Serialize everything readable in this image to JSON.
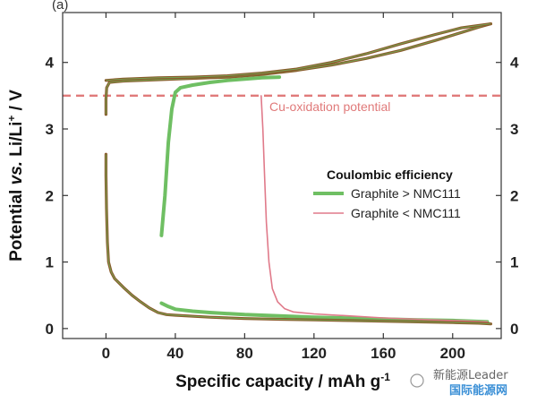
{
  "chart_data": {
    "type": "line",
    "panel_label": "(a)",
    "xlabel": "Specific capacity / mAh g",
    "xlabel_sup": "-1",
    "ylabel_parts": {
      "pre": "Potential ",
      "vs": "vs.",
      "mid": " Li/Li",
      "sup": "+",
      "post": " / V"
    },
    "xlim": [
      -25,
      228
    ],
    "ylim": [
      -0.15,
      4.75
    ],
    "x_ticks": [
      0,
      40,
      80,
      120,
      160,
      200
    ],
    "y_ticks": [
      0,
      1,
      2,
      3,
      4
    ],
    "grid": false,
    "mirror_right_axis": true,
    "legend_title": "Coulombic efficiency",
    "legend_position": "center-right",
    "reference_line": {
      "y": 3.5,
      "label": "Cu-oxidation potential",
      "color": "#e07a7a"
    },
    "series": [
      {
        "name": "Graphite > NMC111",
        "color": "#6fbf63",
        "width": 4,
        "segments": [
          [
            [
              32,
              1.4
            ],
            [
              34,
              2.0
            ],
            [
              36,
              2.8
            ],
            [
              38,
              3.3
            ],
            [
              40,
              3.55
            ],
            [
              43,
              3.62
            ],
            [
              50,
              3.66
            ],
            [
              60,
              3.7
            ],
            [
              70,
              3.73
            ],
            [
              80,
              3.75
            ],
            [
              90,
              3.77
            ],
            [
              100,
              3.78
            ]
          ],
          [
            [
              32,
              0.38
            ],
            [
              36,
              0.33
            ],
            [
              40,
              0.29
            ],
            [
              50,
              0.26
            ],
            [
              60,
              0.24
            ],
            [
              80,
              0.21
            ],
            [
              100,
              0.19
            ],
            [
              120,
              0.17
            ],
            [
              150,
              0.15
            ],
            [
              180,
              0.13
            ],
            [
              200,
              0.12
            ],
            [
              220,
              0.1
            ]
          ]
        ]
      },
      {
        "name": "Graphite < NMC111",
        "color": "#e07a8a",
        "width": 1.6,
        "segments": [
          [
            [
              89.5,
              3.5
            ],
            [
              90.5,
              3.0
            ],
            [
              91.5,
              2.3
            ],
            [
              92.5,
              1.6
            ],
            [
              94,
              1.0
            ],
            [
              96,
              0.6
            ],
            [
              99,
              0.4
            ],
            [
              103,
              0.3
            ],
            [
              108,
              0.25
            ],
            [
              120,
              0.22
            ],
            [
              140,
              0.19
            ],
            [
              160,
              0.16
            ],
            [
              180,
              0.14
            ],
            [
              200,
              0.12
            ],
            [
              220,
              0.1
            ]
          ]
        ]
      },
      {
        "name": "",
        "color": "#8a5a2b",
        "overlay_color": "#6fbf63",
        "width": 3.2,
        "segments": [
          [
            [
              0,
              2.62
            ],
            [
              0,
              2.3
            ],
            [
              0.3,
              1.8
            ],
            [
              0.8,
              1.3
            ],
            [
              1.5,
              1.0
            ],
            [
              3,
              0.85
            ],
            [
              5,
              0.75
            ],
            [
              10,
              0.62
            ],
            [
              15,
              0.5
            ],
            [
              20,
              0.4
            ],
            [
              25,
              0.31
            ],
            [
              30,
              0.24
            ],
            [
              35,
              0.21
            ],
            [
              40,
              0.2
            ],
            [
              60,
              0.17
            ],
            [
              80,
              0.15
            ],
            [
              100,
              0.14
            ],
            [
              120,
              0.13
            ],
            [
              140,
              0.12
            ],
            [
              160,
              0.11
            ],
            [
              180,
              0.1
            ],
            [
              200,
              0.09
            ],
            [
              215,
              0.08
            ],
            [
              222,
              0.07
            ]
          ],
          [
            [
              0,
              3.22
            ],
            [
              0,
              3.45
            ],
            [
              0.4,
              3.62
            ],
            [
              2,
              3.7
            ],
            [
              10,
              3.72
            ],
            [
              30,
              3.74
            ],
            [
              50,
              3.76
            ],
            [
              70,
              3.78
            ],
            [
              90,
              3.82
            ],
            [
              110,
              3.88
            ],
            [
              130,
              3.96
            ],
            [
              150,
              4.06
            ],
            [
              170,
              4.18
            ],
            [
              190,
              4.33
            ],
            [
              205,
              4.45
            ],
            [
              215,
              4.53
            ],
            [
              222,
              4.58
            ]
          ],
          [
            [
              222,
              4.58
            ],
            [
              205,
              4.52
            ],
            [
              190,
              4.42
            ],
            [
              170,
              4.28
            ],
            [
              150,
              4.13
            ],
            [
              130,
              4.0
            ],
            [
              110,
              3.9
            ],
            [
              90,
              3.84
            ],
            [
              70,
              3.8
            ],
            [
              50,
              3.78
            ],
            [
              30,
              3.77
            ],
            [
              10,
              3.75
            ],
            [
              0,
              3.73
            ]
          ]
        ]
      }
    ]
  },
  "watermark": {
    "line1": "新能源Leader",
    "line2": "国际能源网"
  }
}
